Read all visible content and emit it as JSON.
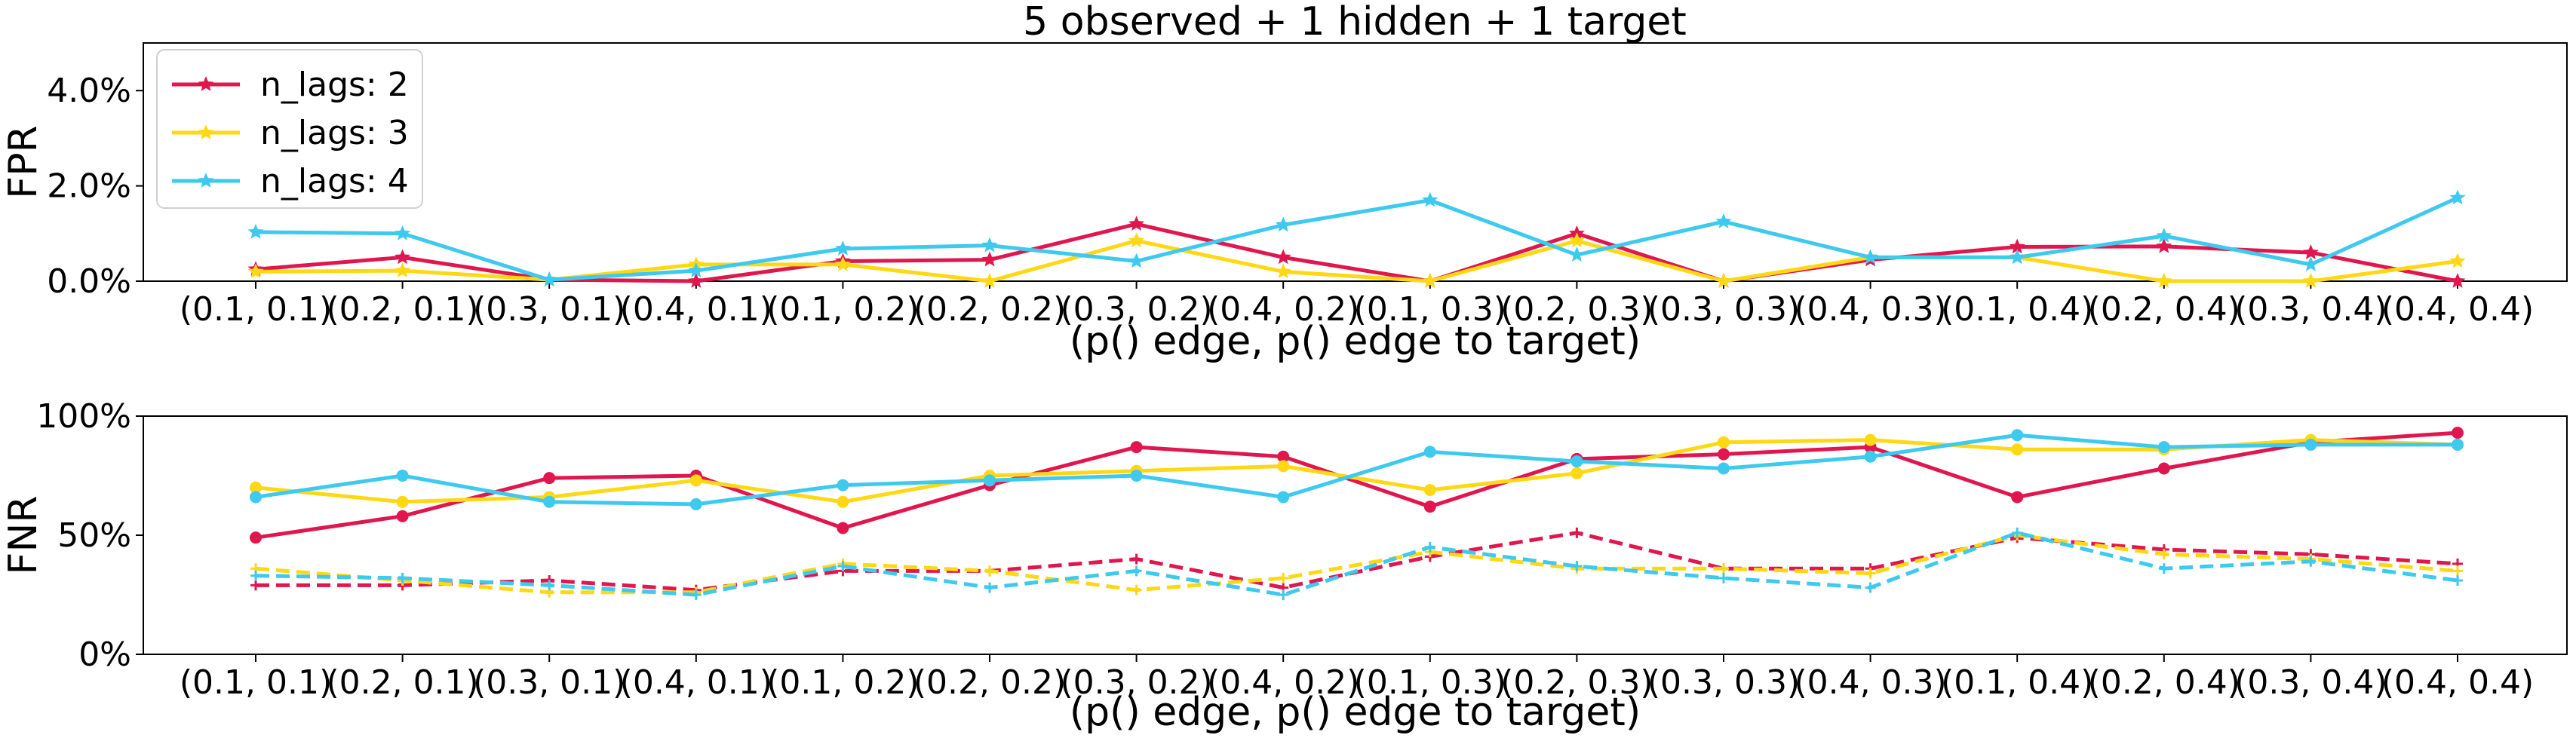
{
  "title": "5 observed + 1 hidden + 1 target",
  "colors": {
    "n_lags_2": "#e0174f",
    "n_lags_3": "#ffd814",
    "n_lags_4": "#3ec9ee"
  },
  "chart_data": [
    {
      "type": "line",
      "name": "top",
      "ylabel": "FPR",
      "xlabel": "(p() edge, p() edge to target)",
      "ylim": [
        0,
        0.05
      ],
      "yticks": [
        0,
        0.02,
        0.04
      ],
      "ytick_labels": [
        "0.0%",
        "2.0%",
        "4.0%"
      ],
      "categories": [
        "(0.1, 0.1)",
        "(0.2, 0.1)",
        "(0.3, 0.1)",
        "(0.4, 0.1)",
        "(0.1, 0.2)",
        "(0.2, 0.2)",
        "(0.3, 0.2)",
        "(0.4, 0.2)",
        "(0.1, 0.3)",
        "(0.2, 0.3)",
        "(0.3, 0.3)",
        "(0.4, 0.3)",
        "(0.1, 0.4)",
        "(0.2, 0.4)",
        "(0.3, 0.4)",
        "(0.4, 0.4)"
      ],
      "legend": {
        "position": "upper left",
        "labels": [
          "n_lags: 2",
          "n_lags: 3",
          "n_lags: 4"
        ]
      },
      "grid": false,
      "series": [
        {
          "name": "n_lags: 2",
          "color_key": "n_lags_2",
          "marker": "star",
          "style": "solid",
          "values": [
            0.0025,
            0.005,
            0.0003,
            0.0,
            0.0042,
            0.0045,
            0.012,
            0.005,
            0.0,
            0.01,
            0.0,
            0.0045,
            0.0072,
            0.0073,
            0.006,
            0.0
          ]
        },
        {
          "name": "n_lags: 3",
          "color_key": "n_lags_3",
          "marker": "star",
          "style": "solid",
          "values": [
            0.002,
            0.0022,
            0.0003,
            0.0035,
            0.0035,
            0.0,
            0.0085,
            0.002,
            0.0,
            0.0085,
            0.0,
            0.005,
            0.005,
            0.0,
            0.0,
            0.0042
          ]
        },
        {
          "name": "n_lags: 4",
          "color_key": "n_lags_4",
          "marker": "star",
          "style": "solid",
          "values": [
            0.0103,
            0.01,
            0.0003,
            0.0022,
            0.0068,
            0.0075,
            0.0042,
            0.0118,
            0.017,
            0.0055,
            0.0125,
            0.005,
            0.005,
            0.0095,
            0.0035,
            0.0175
          ]
        }
      ]
    },
    {
      "type": "line",
      "name": "bottom",
      "ylabel": "FNR",
      "xlabel": "(p() edge, p() edge to target)",
      "ylim": [
        0,
        1.0
      ],
      "yticks": [
        0,
        0.5,
        1.0
      ],
      "ytick_labels": [
        "0%",
        "50%",
        "100%"
      ],
      "categories": [
        "(0.1, 0.1)",
        "(0.2, 0.1)",
        "(0.3, 0.1)",
        "(0.4, 0.1)",
        "(0.1, 0.2)",
        "(0.2, 0.2)",
        "(0.3, 0.2)",
        "(0.4, 0.2)",
        "(0.1, 0.3)",
        "(0.2, 0.3)",
        "(0.3, 0.3)",
        "(0.4, 0.3)",
        "(0.1, 0.4)",
        "(0.2, 0.4)",
        "(0.3, 0.4)",
        "(0.4, 0.4)"
      ],
      "grid": false,
      "series": [
        {
          "name": "n_lags: 2",
          "color_key": "n_lags_2",
          "marker": "circle",
          "style": "solid",
          "values": [
            0.49,
            0.58,
            0.74,
            0.75,
            0.53,
            0.71,
            0.87,
            0.83,
            0.62,
            0.82,
            0.84,
            0.87,
            0.66,
            0.78,
            0.89,
            0.93
          ]
        },
        {
          "name": "n_lags: 3",
          "color_key": "n_lags_3",
          "marker": "circle",
          "style": "solid",
          "values": [
            0.7,
            0.64,
            0.66,
            0.73,
            0.64,
            0.75,
            0.77,
            0.79,
            0.69,
            0.76,
            0.89,
            0.9,
            0.86,
            0.86,
            0.9,
            0.88
          ]
        },
        {
          "name": "n_lags: 4",
          "color_key": "n_lags_4",
          "marker": "circle",
          "style": "solid",
          "values": [
            0.66,
            0.75,
            0.64,
            0.63,
            0.71,
            0.73,
            0.75,
            0.66,
            0.85,
            0.81,
            0.78,
            0.83,
            0.92,
            0.87,
            0.88,
            0.88
          ]
        },
        {
          "name": "n_lags: 2",
          "color_key": "n_lags_2",
          "marker": "plus",
          "style": "dashed",
          "values": [
            0.29,
            0.29,
            0.31,
            0.27,
            0.35,
            0.35,
            0.4,
            0.28,
            0.41,
            0.51,
            0.36,
            0.36,
            0.49,
            0.44,
            0.42,
            0.38
          ]
        },
        {
          "name": "n_lags: 3",
          "color_key": "n_lags_3",
          "marker": "plus",
          "style": "dashed",
          "values": [
            0.36,
            0.31,
            0.26,
            0.26,
            0.38,
            0.35,
            0.27,
            0.32,
            0.43,
            0.36,
            0.36,
            0.34,
            0.5,
            0.42,
            0.4,
            0.35
          ]
        },
        {
          "name": "n_lags: 4",
          "color_key": "n_lags_4",
          "marker": "plus",
          "style": "dashed",
          "values": [
            0.33,
            0.32,
            0.29,
            0.25,
            0.37,
            0.28,
            0.35,
            0.25,
            0.45,
            0.37,
            0.32,
            0.28,
            0.51,
            0.36,
            0.39,
            0.31
          ]
        }
      ]
    }
  ]
}
